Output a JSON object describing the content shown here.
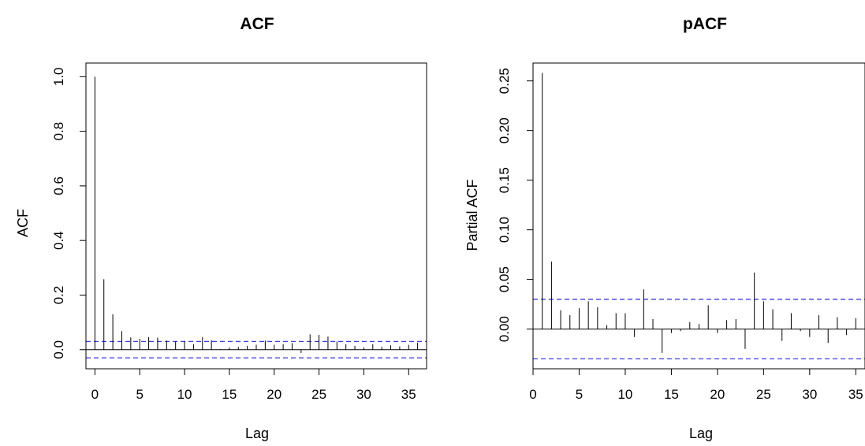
{
  "chart_data": [
    {
      "type": "bar",
      "title": "ACF",
      "xlabel": "Lag",
      "ylabel": "ACF",
      "xlim": [
        -1,
        37
      ],
      "ylim": [
        -0.07,
        1.05
      ],
      "xticks": [
        0,
        5,
        10,
        15,
        20,
        25,
        30,
        35
      ],
      "xtick_labels": [
        "0",
        "5",
        "10",
        "15",
        "20",
        "25",
        "30",
        "35"
      ],
      "yticks": [
        0.0,
        0.2,
        0.4,
        0.6,
        0.8,
        1.0
      ],
      "ytick_labels": [
        "0.0",
        "0.2",
        "0.4",
        "0.6",
        "0.8",
        "1.0"
      ],
      "confidence_bound": 0.03,
      "confidence_color": "#3a3af0",
      "grid": false,
      "lags": [
        0,
        1,
        2,
        3,
        4,
        5,
        6,
        7,
        8,
        9,
        10,
        11,
        12,
        13,
        14,
        15,
        16,
        17,
        18,
        19,
        20,
        21,
        22,
        23,
        24,
        25,
        26,
        27,
        28,
        29,
        30,
        31,
        32,
        33,
        34,
        35,
        36
      ],
      "values": [
        1.0,
        0.258,
        0.13,
        0.068,
        0.045,
        0.04,
        0.046,
        0.044,
        0.033,
        0.03,
        0.032,
        0.02,
        0.046,
        0.035,
        0.002,
        0.008,
        0.01,
        0.014,
        0.018,
        0.033,
        0.018,
        0.02,
        0.024,
        -0.012,
        0.056,
        0.054,
        0.048,
        0.03,
        0.02,
        0.014,
        0.008,
        0.02,
        0.01,
        0.016,
        0.012,
        0.018,
        0.026
      ]
    },
    {
      "type": "bar",
      "title": "pACF",
      "xlabel": "Lag",
      "ylabel": "Partial ACF",
      "xlim": [
        0,
        36
      ],
      "ylim": [
        -0.04,
        0.268
      ],
      "xticks": [
        0,
        5,
        10,
        15,
        20,
        25,
        30,
        35
      ],
      "xtick_labels": [
        "0",
        "5",
        "10",
        "15",
        "20",
        "25",
        "30",
        "35"
      ],
      "yticks": [
        0.0,
        0.05,
        0.1,
        0.15,
        0.2,
        0.25
      ],
      "ytick_labels": [
        "0.00",
        "0.05",
        "0.10",
        "0.15",
        "0.20",
        "0.25"
      ],
      "confidence_bound": 0.03,
      "confidence_color": "#3a3af0",
      "grid": false,
      "lags": [
        1,
        2,
        3,
        4,
        5,
        6,
        7,
        8,
        9,
        10,
        11,
        12,
        13,
        14,
        15,
        16,
        17,
        18,
        19,
        20,
        21,
        22,
        23,
        24,
        25,
        26,
        27,
        28,
        29,
        30,
        31,
        32,
        33,
        34,
        35,
        36
      ],
      "values": [
        0.258,
        0.068,
        0.019,
        0.014,
        0.021,
        0.028,
        0.022,
        0.004,
        0.016,
        0.016,
        -0.008,
        0.04,
        0.01,
        -0.024,
        -0.004,
        -0.002,
        0.007,
        0.005,
        0.024,
        -0.004,
        0.009,
        0.01,
        -0.02,
        0.057,
        0.028,
        0.02,
        -0.012,
        0.016,
        -0.002,
        -0.008,
        0.014,
        -0.014,
        0.012,
        -0.006,
        0.011,
        0.028
      ]
    }
  ]
}
